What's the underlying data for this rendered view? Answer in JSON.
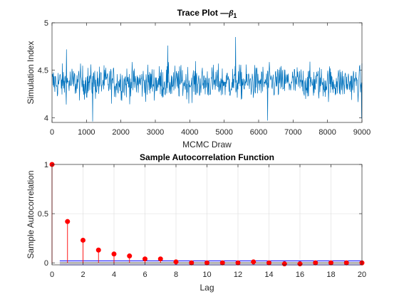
{
  "chart_data": [
    {
      "type": "line",
      "title": "Trace Plot —",
      "title_symbol": "β",
      "title_subscript": "1",
      "xlabel": "MCMC Draw",
      "ylabel": "Simulation Index",
      "xlim": [
        0,
        9000
      ],
      "ylim": [
        3.95,
        5.0
      ],
      "xticks": [
        0,
        1000,
        2000,
        3000,
        4000,
        5000,
        6000,
        7000,
        8000,
        9000
      ],
      "xtick_labels": [
        "0",
        "1000",
        "2000",
        "3000",
        "4000",
        "5000",
        "6000",
        "7000",
        "8000",
        "9000"
      ],
      "yticks": [
        4,
        4.5,
        5
      ],
      "ytick_labels": [
        "4",
        "4.5",
        "5"
      ],
      "grid": false,
      "series": [
        {
          "color": "#0072BD",
          "n_draws": 9000,
          "center": 4.37,
          "approx_band": [
            4.2,
            4.55
          ],
          "observed_min": 3.96,
          "observed_max": 4.85
        }
      ]
    },
    {
      "type": "stem",
      "title": "Sample Autocorrelation Function",
      "xlabel": "Lag",
      "ylabel": "Sample Autocorrelation",
      "xlim": [
        0,
        20
      ],
      "ylim": [
        -0.02,
        1.0
      ],
      "xticks": [
        0,
        2,
        4,
        6,
        8,
        10,
        12,
        14,
        16,
        18,
        20
      ],
      "xtick_labels": [
        "0",
        "2",
        "4",
        "6",
        "8",
        "10",
        "12",
        "14",
        "16",
        "18",
        "20"
      ],
      "yticks": [
        0,
        0.5,
        1
      ],
      "ytick_labels": [
        "0",
        "0.5",
        "1"
      ],
      "grid": true,
      "stem_color": "#FF0000",
      "lags": [
        0,
        1,
        2,
        3,
        4,
        5,
        6,
        7,
        8,
        9,
        10,
        11,
        12,
        13,
        14,
        15,
        16,
        17,
        18,
        19,
        20
      ],
      "values": [
        1.0,
        0.42,
        0.23,
        0.13,
        0.09,
        0.07,
        0.04,
        0.04,
        0.01,
        0.0,
        0.0,
        0.0,
        0.0,
        0.01,
        0.0,
        -0.01,
        -0.01,
        0.0,
        0.0,
        0.0,
        0.0
      ],
      "confidence_bounds": [
        0.02,
        -0.02
      ],
      "bound_color": "#0000FF"
    }
  ]
}
